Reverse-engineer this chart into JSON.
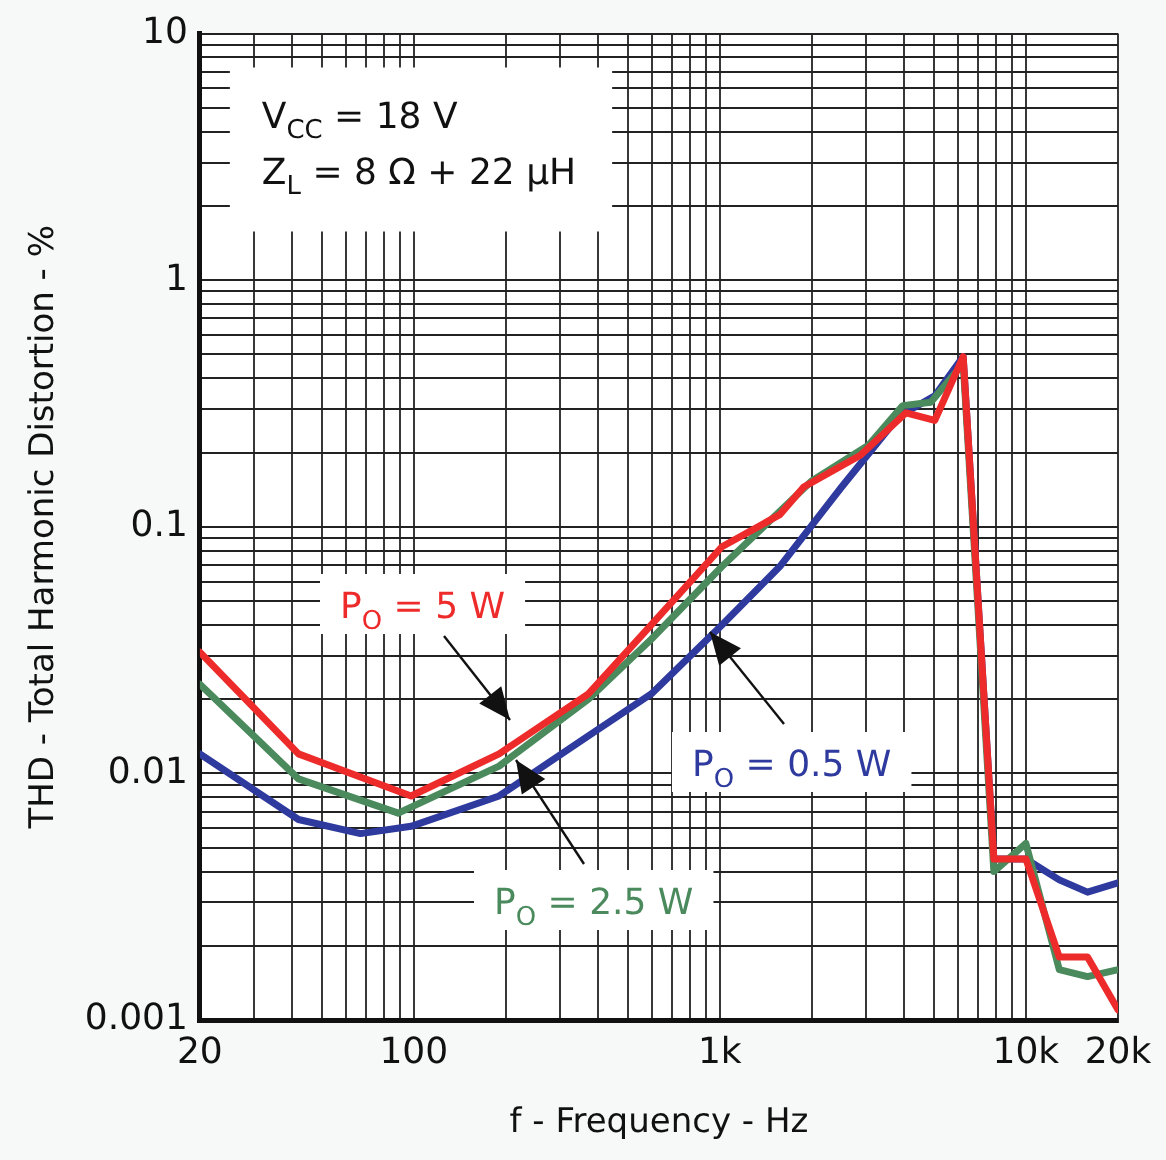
{
  "chart_data": {
    "type": "line",
    "xlabel": "f - Frequency - Hz",
    "ylabel": "THD - Total Harmonic Distortion - %",
    "log": "xy",
    "grid": true,
    "legend": false,
    "marker": "none",
    "line_style": "solid",
    "xlim": [
      20,
      20000
    ],
    "ylim": [
      0.001,
      10
    ],
    "xticks": [
      20,
      {
        "value": 30,
        "label": null
      },
      {
        "value": 40,
        "label": null
      },
      {
        "value": 50,
        "label": null
      },
      {
        "value": 60,
        "label": null
      },
      {
        "value": 70,
        "label": null
      },
      {
        "value": 80,
        "label": null
      },
      {
        "value": 90,
        "label": null
      },
      100,
      {
        "value": 200,
        "label": null
      },
      {
        "value": 300,
        "label": null
      },
      {
        "value": 400,
        "label": null
      },
      {
        "value": 500,
        "label": null
      },
      {
        "value": 600,
        "label": null
      },
      {
        "value": 700,
        "label": null
      },
      {
        "value": 800,
        "label": null
      },
      {
        "value": 900,
        "label": null
      },
      {
        "value": 1000,
        "label": "1k"
      },
      {
        "value": 2000,
        "label": null
      },
      {
        "value": 3000,
        "label": null
      },
      {
        "value": 4000,
        "label": null
      },
      {
        "value": 5000,
        "label": null
      },
      {
        "value": 6000,
        "label": null
      },
      {
        "value": 7000,
        "label": null
      },
      {
        "value": 8000,
        "label": null
      },
      {
        "value": 9000,
        "label": null
      },
      {
        "value": 10000,
        "label": "10k"
      },
      {
        "value": 20000,
        "label": "20k"
      }
    ],
    "yticks": [
      0.001,
      {
        "value": 0.002,
        "label": null
      },
      {
        "value": 0.003,
        "label": null
      },
      {
        "value": 0.004,
        "label": null
      },
      {
        "value": 0.005,
        "label": null
      },
      {
        "value": 0.006,
        "label": null
      },
      {
        "value": 0.007,
        "label": null
      },
      {
        "value": 0.008,
        "label": null
      },
      {
        "value": 0.009,
        "label": null
      },
      0.01,
      {
        "value": 0.02,
        "label": null
      },
      {
        "value": 0.03,
        "label": null
      },
      {
        "value": 0.04,
        "label": null
      },
      {
        "value": 0.05,
        "label": null
      },
      {
        "value": 0.06,
        "label": null
      },
      {
        "value": 0.07,
        "label": null
      },
      {
        "value": 0.08,
        "label": null
      },
      {
        "value": 0.09,
        "label": null
      },
      0.1,
      {
        "value": 0.2,
        "label": null
      },
      {
        "value": 0.3,
        "label": null
      },
      {
        "value": 0.4,
        "label": null
      },
      {
        "value": 0.5,
        "label": null
      },
      {
        "value": 0.6,
        "label": null
      },
      {
        "value": 0.7,
        "label": null
      },
      {
        "value": 0.8,
        "label": null
      },
      {
        "value": 0.9,
        "label": null
      },
      1,
      {
        "value": 2,
        "label": null
      },
      {
        "value": 3,
        "label": null
      },
      {
        "value": 4,
        "label": null
      },
      {
        "value": 5,
        "label": null
      },
      {
        "value": 6,
        "label": null
      },
      {
        "value": 7,
        "label": null
      },
      {
        "value": 8,
        "label": null
      },
      {
        "value": 9,
        "label": null
      },
      10
    ],
    "annotations": [
      "V$_{CC}$ = 18 V",
      "Z$_{L}$ = 8 Ω + 22 μH"
    ],
    "series": [
      {
        "name": "P$_{O}$ = 5 W",
        "color": "#ee2b2b",
        "x": [
          20,
          42,
          98,
          190,
          372,
          597,
          1016,
          1570,
          1880,
          2880,
          4060,
          5040,
          6240,
          7860,
          10000,
          12860,
          15900,
          20000
        ],
        "values": [
          0.031,
          0.012,
          0.0081,
          0.012,
          0.021,
          0.04,
          0.083,
          0.112,
          0.145,
          0.195,
          0.29,
          0.27,
          0.49,
          0.0045,
          0.0045,
          0.0018,
          0.0018,
          0.0011
        ]
      },
      {
        "name": "P$_{O}$ = 2.5 W",
        "color": "#4a8a5c",
        "x": [
          20,
          42,
          89,
          190,
          372,
          597,
          1016,
          1990,
          3060,
          3960,
          4890,
          6240,
          7860,
          10000,
          12860,
          15900,
          20000
        ],
        "values": [
          0.023,
          0.0095,
          0.0069,
          0.0107,
          0.02,
          0.035,
          0.069,
          0.153,
          0.214,
          0.31,
          0.32,
          0.46,
          0.004,
          0.0052,
          0.0016,
          0.0015,
          0.0016
        ]
      },
      {
        "name": "P$_{O}$ = 0.5 W",
        "color": "#2e3a9e",
        "x": [
          20,
          42,
          67,
          98,
          190,
          372,
          597,
          1016,
          1570,
          2500,
          3840,
          5040,
          6240,
          7860,
          10000,
          12860,
          15900,
          20000
        ],
        "values": [
          0.012,
          0.0065,
          0.0057,
          0.0061,
          0.0081,
          0.0142,
          0.021,
          0.04,
          0.069,
          0.145,
          0.28,
          0.34,
          0.49,
          0.0045,
          0.0045,
          0.0037,
          0.0033,
          0.0036
        ]
      }
    ]
  }
}
